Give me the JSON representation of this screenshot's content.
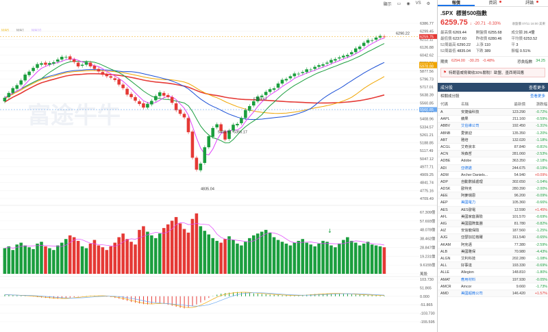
{
  "toolbar": {
    "display_label": "顯示",
    "vs_label": "VS"
  },
  "chart_labels": {
    "watermark": "富途牛牛",
    "ma_legend": [
      "MA5",
      "MA1",
      "MA10"
    ],
    "price_scale": [
      "6386.77",
      "6299.45",
      "6212.11",
      "6126.88",
      "6042.62",
      "5959.52",
      "5877.56",
      "5796.73",
      "5717.01",
      "5638.39",
      "5560.85",
      "5484.38",
      "5408.96",
      "5334.57",
      "5261.21",
      "5188.85",
      "5117.49",
      "5047.12",
      "4977.71",
      "4909.25",
      "4841.74",
      "4775.16",
      "4709.49"
    ],
    "price_tags": [
      "6290.22",
      "6259.75",
      "5993.51",
      "5978.88",
      "5560.85"
    ],
    "annotations": [
      "4835.04",
      "5409.61~5356.17",
      "5769.67"
    ],
    "volume_scale": [
      "67.309億",
      "57.693億",
      "48.078億",
      "38.462億",
      "28.847億",
      "19.231億",
      "9.6155億",
      "萬股"
    ],
    "macd_scale": [
      "103.730",
      "51.865",
      "0.000",
      "-51.865",
      "-103.730",
      "-155.595"
    ]
  },
  "chart_data": [
    {
      "type": "candlestick",
      "title": "",
      "ylim": [
        4709.49,
        6386.77
      ],
      "series": [
        {
          "name": "SPX",
          "open": [
            5640,
            5680,
            5720,
            5760,
            5800,
            5840,
            5890,
            5930,
            5960,
            5990,
            6010,
            5990,
            6000,
            6020,
            6040,
            6060,
            6070,
            6040,
            6010,
            5980,
            5990,
            6010,
            5980,
            5950,
            5920,
            5900,
            5880,
            5860,
            5850,
            5800,
            5760,
            5710,
            5680,
            5640,
            5620,
            5580,
            5610,
            5650,
            5690,
            5720,
            5700,
            5680,
            5620,
            5560,
            5520,
            5480,
            5350,
            5100,
            4980,
            5050,
            5200,
            5300,
            5390,
            5420,
            5350,
            5280,
            5360,
            5410,
            5430,
            5480,
            5550,
            5600,
            5640,
            5680,
            5700,
            5730,
            5750,
            5770,
            5810,
            5840,
            5860,
            5880,
            5900,
            5910,
            5920,
            5940,
            5950,
            5970,
            5980,
            6000,
            6010,
            6030,
            6050,
            6060,
            6070,
            6090,
            6110,
            6140,
            6170,
            6200,
            6220,
            6230,
            6250,
            6260
          ]
        }
      ],
      "last": 6259.75,
      "high_mark": 6290.22,
      "low_mark": 4835.04
    },
    {
      "type": "bar",
      "title": "Volume",
      "ylim": [
        0,
        67.309
      ],
      "values": [
        28,
        30,
        26,
        32,
        34,
        31,
        29,
        27,
        33,
        35,
        30,
        28,
        26,
        31,
        34,
        38,
        42,
        40,
        36,
        30,
        28,
        33,
        37,
        31,
        29,
        26,
        30,
        34,
        40,
        44,
        38,
        35,
        32,
        48,
        52,
        46,
        42,
        39,
        44,
        50,
        54,
        58,
        62,
        55,
        49,
        45,
        60,
        66,
        52,
        47,
        43,
        39,
        36,
        34,
        38,
        41,
        37,
        33,
        31,
        35,
        39,
        42,
        44,
        46,
        48,
        45,
        40,
        37,
        35,
        33,
        31,
        34,
        36,
        38,
        34,
        32,
        30,
        33,
        36,
        35,
        31,
        29,
        33,
        37,
        40,
        36,
        34,
        31,
        33,
        35,
        32,
        31,
        30,
        29
      ]
    },
    {
      "type": "bar",
      "title": "MACD",
      "ylim": [
        -155.595,
        103.73
      ],
      "values": [
        10,
        8,
        6,
        5,
        3,
        2,
        0,
        -2,
        -5,
        -8,
        -10,
        -12,
        -14,
        -15,
        -13,
        -11,
        -8,
        -5,
        -3,
        -1,
        2,
        3,
        4,
        3,
        1,
        -2,
        -5,
        -10,
        -15,
        -22,
        -28,
        -35,
        -40,
        -44,
        -48,
        -50,
        -45,
        -40,
        -42,
        -46,
        -52,
        -58,
        -64,
        -70,
        -74,
        -68,
        -60,
        -50,
        -38,
        -24,
        -10,
        2,
        10,
        16,
        20,
        22,
        24,
        26,
        25,
        22,
        20,
        18,
        16,
        14,
        12,
        10,
        9,
        8,
        6,
        5,
        4,
        5,
        6,
        8,
        10,
        12,
        14,
        15,
        16,
        17,
        18,
        17,
        16,
        15,
        14,
        12,
        10,
        9,
        8,
        7,
        6,
        5,
        4,
        3
      ]
    }
  ],
  "right_panel": {
    "tabs": [
      "報價",
      "資訊",
      "評論"
    ],
    "symbol": ".SPX",
    "name": "標普500指數",
    "price": "6259.75",
    "change": "-20.71",
    "change_pct": "-0.33%",
    "time": "收盤價 07/11 16:00 美東",
    "stats": [
      {
        "k": "最高價",
        "v": "6269.44",
        "c": "red"
      },
      {
        "k": "開盤價",
        "v": "6255.68",
        "c": "red"
      },
      {
        "k": "成交額",
        "v": "26.4億",
        "c": ""
      },
      {
        "k": "最低價",
        "v": "6237.60",
        "c": "red"
      },
      {
        "k": "昨收價",
        "v": "6280.46",
        "c": ""
      },
      {
        "k": "平均價",
        "v": "6253.52",
        "c": "red"
      },
      {
        "k": "52周最高",
        "v": "6290.22",
        "c": "red"
      },
      {
        "k": "上漲",
        "v": "110",
        "c": "red"
      },
      {
        "k": "平",
        "v": "3",
        "c": ""
      },
      {
        "k": "52周最低",
        "v": "4835.04",
        "c": "red"
      },
      {
        "k": "下跌",
        "v": "389",
        "c": "green"
      },
      {
        "k": "振幅",
        "v": "0.51%",
        "c": ""
      }
    ],
    "subline": {
      "a": "期貨",
      "b": "6294.00",
      "c": "-30.25",
      "d": "-0.48%",
      "e": "恐貪指數",
      "f": "34.25"
    },
    "banner": "特朗普威脅徵收30%關稅！歐盟、墨西哥回應",
    "segment_title": "成分股",
    "segment_more": "查看更多",
    "seg_left": "相關成分股",
    "seg_right": "查看更多",
    "table_headers": [
      "代碼",
      "名稱",
      "最新價",
      "漲跌幅"
    ],
    "rows": [
      {
        "code": "A",
        "name": "安捷倫科技",
        "price": "123.290",
        "chg": "-0.72%",
        "c": "green"
      },
      {
        "code": "AAPL",
        "name": "蘋果",
        "price": "211.160",
        "chg": "-0.59%",
        "c": "green"
      },
      {
        "code": "ABBV",
        "name": "艾伯維公司",
        "price": "192.450",
        "chg": "-1.31%",
        "c": "green"
      },
      {
        "code": "ABNB",
        "name": "愛彼迎",
        "price": "135.350",
        "chg": "-1.20%",
        "c": "green"
      },
      {
        "code": "ABT",
        "name": "雅培",
        "price": "132.020",
        "chg": "-1.18%",
        "c": "green"
      },
      {
        "code": "ACGL",
        "name": "艾奇資本",
        "price": "87.840",
        "chg": "-0.81%",
        "c": "green"
      },
      {
        "code": "ACN",
        "name": "埃森哲",
        "price": "281.060",
        "chg": "-2.53%",
        "c": "green"
      },
      {
        "code": "ADBE",
        "name": "Adobe",
        "price": "363.350",
        "chg": "-2.18%",
        "c": "green"
      },
      {
        "code": "ADI",
        "name": "亞德諾",
        "price": "244.675",
        "chg": "-0.19%",
        "c": "green"
      },
      {
        "code": "ADM",
        "name": "Archer Daniels...",
        "price": "54.940",
        "chg": "+0.09%",
        "c": "red"
      },
      {
        "code": "ADP",
        "name": "自動數據處理",
        "price": "302.650",
        "chg": "-1.04%",
        "c": "green"
      },
      {
        "code": "ADSK",
        "name": "歐特克",
        "price": "280.390",
        "chg": "-2.00%",
        "c": "green"
      },
      {
        "code": "AEE",
        "name": "阿麥瑞恩",
        "price": "96.200",
        "chg": "-0.09%",
        "c": "green"
      },
      {
        "code": "AEP",
        "name": "美國電力",
        "price": "105.360",
        "chg": "-0.66%",
        "c": "green"
      },
      {
        "code": "AES",
        "name": "AES發電",
        "price": "12.590",
        "chg": "+1.45%",
        "c": "red"
      },
      {
        "code": "AFL",
        "name": "美國家庭壽險",
        "price": "101.570",
        "chg": "-0.69%",
        "c": "green"
      },
      {
        "code": "AIG",
        "name": "美國國際集團",
        "price": "81.780",
        "chg": "-0.82%",
        "c": "green"
      },
      {
        "code": "AIZ",
        "name": "安信龍保險",
        "price": "187.560",
        "chg": "-1.25%",
        "c": "green"
      },
      {
        "code": "AJG",
        "name": "亞瑟加拉格爾",
        "price": "311.540",
        "chg": "-0.65%",
        "c": "green"
      },
      {
        "code": "AKAM",
        "name": "阿克邁",
        "price": "77.380",
        "chg": "-2.59%",
        "c": "green"
      },
      {
        "code": "ALB",
        "name": "美國雅保",
        "price": "70.980",
        "chg": "-4.43%",
        "c": "green"
      },
      {
        "code": "ALGN",
        "name": "艾利科技",
        "price": "202.280",
        "chg": "-1.08%",
        "c": "green"
      },
      {
        "code": "ALL",
        "name": "好事達",
        "price": "193.330",
        "chg": "-0.69%",
        "c": "green"
      },
      {
        "code": "ALLE",
        "name": "Allegion",
        "price": "148.810",
        "chg": "-1.80%",
        "c": "green"
      },
      {
        "code": "AMAT",
        "name": "應用材料",
        "price": "197.930",
        "chg": "-0.05%",
        "c": "green"
      },
      {
        "code": "AMCR",
        "name": "Amcor",
        "price": "9.660",
        "chg": "-1.73%",
        "c": "green"
      },
      {
        "code": "AMD",
        "name": "美國超微公司",
        "price": "146.420",
        "chg": "+1.57%",
        "c": "red"
      }
    ],
    "colors": {
      "up": "#e53935",
      "down": "#1b9e3e",
      "link": "#1a73e8",
      "header": "#2b4a6d"
    }
  }
}
